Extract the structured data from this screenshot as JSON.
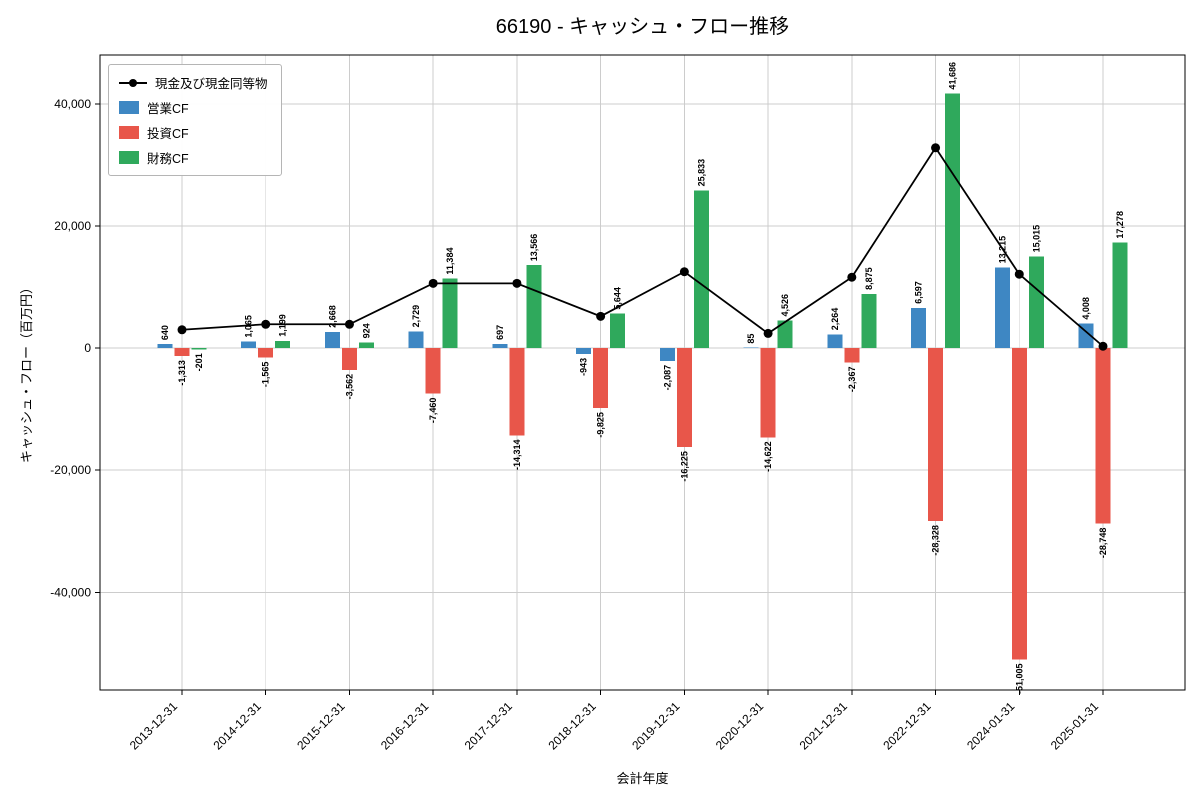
{
  "chart_data": {
    "type": "bar",
    "title": "66190 - キャッシュ・フロー推移",
    "xlabel": "会計年度",
    "ylabel": "キャッシュ・フロー（百万円）",
    "grid": true,
    "legend_position": "upper left",
    "ylim": [
      -56000,
      48000
    ],
    "yticks": [
      -40000,
      -20000,
      0,
      20000,
      40000
    ],
    "categories": [
      "2013-12-31",
      "2014-12-31",
      "2015-12-31",
      "2016-12-31",
      "2017-12-31",
      "2018-12-31",
      "2019-12-31",
      "2020-12-31",
      "2021-12-31",
      "2022-12-31",
      "2024-01-31",
      "2025-01-31"
    ],
    "series": [
      {
        "name": "営業CF",
        "color": "#3e87c3",
        "values": [
          640,
          1065,
          2668,
          2729,
          697,
          -943,
          -2087,
          85,
          2264,
          6597,
          13215,
          4008
        ]
      },
      {
        "name": "投資CF",
        "color": "#e8564a",
        "values": [
          -1313,
          -1565,
          -3562,
          -7460,
          -14314,
          -9825,
          -16225,
          -14622,
          -2367,
          -28328,
          -51005,
          -28748
        ]
      },
      {
        "name": "財務CF",
        "color": "#2fa95c",
        "values": [
          -201,
          1199,
          924,
          11384,
          13566,
          5644,
          25833,
          4526,
          8875,
          41686,
          15015,
          17278
        ]
      }
    ],
    "line_series": {
      "name": "現金及び現金同等物",
      "color": "#000000",
      "values": [
        3000,
        3900,
        3900,
        10600,
        10600,
        5200,
        12500,
        2400,
        11600,
        32800,
        12100,
        300
      ]
    }
  }
}
